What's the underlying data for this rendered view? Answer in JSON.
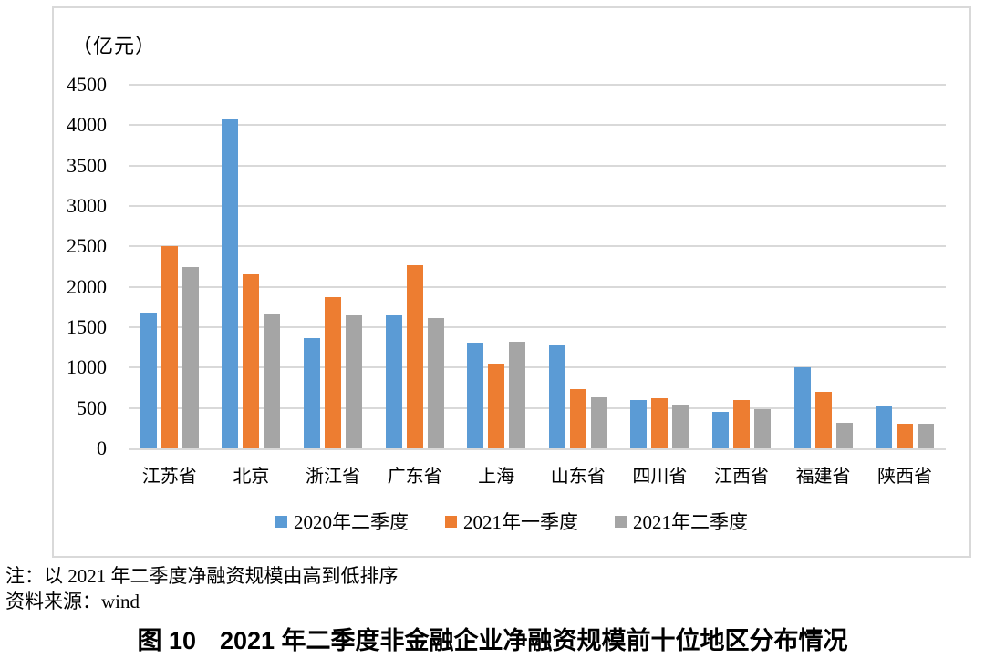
{
  "chart_data": {
    "type": "bar",
    "unit_label": "（亿元）",
    "categories": [
      "江苏省",
      "北京",
      "浙江省",
      "广东省",
      "上海",
      "山东省",
      "四川省",
      "江西省",
      "福建省",
      "陕西省"
    ],
    "series": [
      {
        "name": "2020年二季度",
        "color": "#5B9BD5",
        "values": [
          1680,
          4070,
          1370,
          1650,
          1310,
          1270,
          600,
          450,
          1000,
          530
        ]
      },
      {
        "name": "2021年一季度",
        "color": "#ED7D31",
        "values": [
          2500,
          2150,
          1870,
          2270,
          1050,
          730,
          620,
          600,
          700,
          300
        ]
      },
      {
        "name": "2021年二季度",
        "color": "#A5A5A5",
        "values": [
          2250,
          1660,
          1650,
          1610,
          1320,
          630,
          540,
          490,
          320,
          300
        ]
      }
    ],
    "ylim": [
      0,
      4500
    ],
    "ytick_step": 500,
    "grid": "horizontal",
    "legend_position": "bottom",
    "gridline_color": "#D9D9D9",
    "frame_border_color": "#D9D9D9"
  },
  "notes": {
    "note": "注：以 2021 年二季度净融资规模由高到低排序",
    "source": "资料来源：wind"
  },
  "caption": {
    "number": "图 10",
    "title": "2021 年二季度非金融企业净融资规模前十位地区分布情况"
  }
}
